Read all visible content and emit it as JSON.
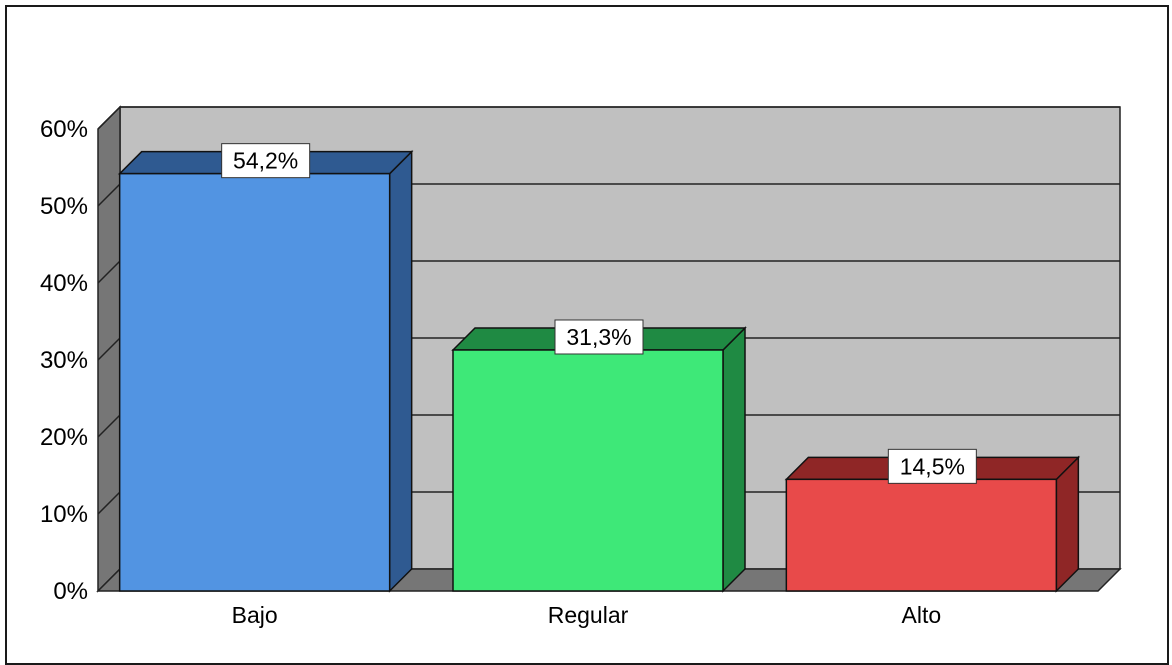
{
  "chart_data": {
    "type": "bar",
    "categories": [
      "Bajo",
      "Regular",
      "Alto"
    ],
    "values": [
      54.2,
      31.3,
      14.5
    ],
    "data_labels": [
      "54,2%",
      "31,3%",
      "14,5%"
    ],
    "colors": [
      "#5294e2",
      "#3ee878",
      "#e84a4a"
    ],
    "side_colors": [
      "#2f5a91",
      "#1f8a43",
      "#8f2626"
    ],
    "ylim": [
      0,
      60
    ],
    "yticks": [
      0,
      10,
      20,
      30,
      40,
      50,
      60
    ],
    "ytick_labels": [
      "0%",
      "10%",
      "20%",
      "30%",
      "40%",
      "50%",
      "60%"
    ],
    "grid": true,
    "style": "3d"
  }
}
